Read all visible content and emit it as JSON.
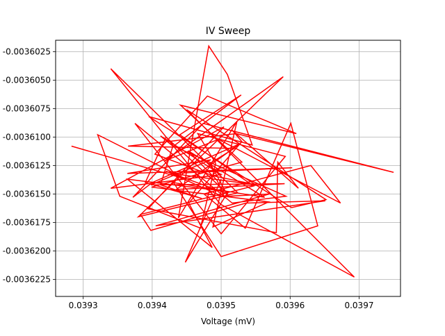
{
  "chart_data": {
    "type": "line",
    "title": "IV Sweep",
    "xlabel": "Voltage (mV)",
    "ylabel": "",
    "xlim": [
      0.03926,
      0.03976
    ],
    "ylim": [
      -0.003624,
      -0.0036015
    ],
    "x_ticks": [
      0.0393,
      0.0394,
      0.0395,
      0.0396,
      0.0397
    ],
    "x_tick_labels": [
      "0.0393",
      "0.0394",
      "0.0395",
      "0.0396",
      "0.0397"
    ],
    "y_ticks": [
      -0.0036025,
      -0.003605,
      -0.0036075,
      -0.00361,
      -0.0036125,
      -0.003615,
      -0.0036175,
      -0.00362,
      -0.0036225
    ],
    "y_tick_labels": [
      "-0.0036025",
      "-0.0036050",
      "-0.0036075",
      "-0.0036100",
      "-0.0036125",
      "-0.0036150",
      "-0.0036175",
      "-0.0036200",
      "-0.0036225"
    ],
    "grid": true,
    "line_color": "#ff0000",
    "x": [
      0.039283,
      0.039449,
      0.039321,
      0.039353,
      0.03947,
      0.039492,
      0.039466,
      0.039593,
      0.0395,
      0.039375,
      0.039516,
      0.039594,
      0.039431,
      0.039529,
      0.03944,
      0.039547,
      0.039383,
      0.039398,
      0.039536,
      0.039651,
      0.039405,
      0.03957,
      0.03951,
      0.039484,
      0.039519,
      0.039365,
      0.039522,
      0.03975,
      0.039474,
      0.039372,
      0.0394,
      0.039527,
      0.039435,
      0.039592,
      0.039398,
      0.039485,
      0.039364,
      0.039603,
      0.039428,
      0.039551,
      0.039488,
      0.039404,
      0.03948,
      0.039609,
      0.039441,
      0.03953,
      0.039399,
      0.039569,
      0.039488,
      0.039523,
      0.039438,
      0.039482,
      0.039509,
      0.039545,
      0.039395,
      0.039602,
      0.039652,
      0.03945,
      0.039693,
      0.039499,
      0.03934,
      0.039524,
      0.03938,
      0.03959,
      0.039418,
      0.039496,
      0.039673,
      0.03963,
      0.039475,
      0.039535,
      0.039601,
      0.03964,
      0.0395,
      0.039431,
      0.039563,
      0.039452,
      0.039494,
      0.039505,
      0.03942,
      0.03951,
      0.03942,
      0.03939,
      0.039472,
      0.039412,
      0.03943,
      0.039412,
      0.0395,
      0.03934,
      0.039504,
      0.039394,
      0.03958,
      0.039582,
      0.039612,
      0.039516,
      0.03953,
      0.039453,
      0.039487,
      0.039364,
      0.03951,
      0.039448,
      0.0395
    ],
    "y": [
      -0.0036108,
      -0.0036137,
      -0.0036098,
      -0.0036152,
      -0.003618,
      -0.0036123,
      -0.0036097,
      -0.0036117,
      -0.0036185,
      -0.0036088,
      -0.0036158,
      -0.0036152,
      -0.0036108,
      -0.0036063,
      -0.0036098,
      -0.0036143,
      -0.0036168,
      -0.0036182,
      -0.0036158,
      -0.0036156,
      -0.0036178,
      -0.003615,
      -0.0036152,
      -0.0036123,
      -0.003611,
      -0.0036108,
      -0.0036097,
      -0.0036131,
      -0.0036088,
      -0.0036153,
      -0.003614,
      -0.0036106,
      -0.0036146,
      -0.0036141,
      -0.0036142,
      -0.003612,
      -0.0036132,
      -0.0036127,
      -0.0036132,
      -0.0036142,
      -0.0036134,
      -0.0036115,
      -0.0036064,
      -0.0036097,
      -0.0036072,
      -0.0036122,
      -0.0036144,
      -0.0036157,
      -0.0036179,
      -0.0036086,
      -0.0036171,
      -0.003602,
      -0.0036045,
      -0.0036107,
      -0.0036082,
      -0.0036162,
      -0.0036155,
      -0.0036076,
      -0.0036223,
      -0.0036159,
      -0.003604,
      -0.0036149,
      -0.003617,
      -0.0036047,
      -0.0036121,
      -0.0036102,
      -0.0036158,
      -0.0036125,
      -0.003615,
      -0.003618,
      -0.0036088,
      -0.0036178,
      -0.0036205,
      -0.003614,
      -0.0036153,
      -0.0036112,
      -0.0036138,
      -0.0036153,
      -0.003613,
      -0.003615,
      -0.00361,
      -0.003614,
      -0.0036154,
      -0.0036142,
      -0.0036108,
      -0.0036099,
      -0.0036133,
      -0.0036145,
      -0.0036091,
      -0.0036163,
      -0.0036184,
      -0.0036122,
      -0.0036145,
      -0.0036094,
      -0.0036104,
      -0.0036158,
      -0.0036197,
      -0.0036137,
      -0.0036148,
      -0.003621,
      -0.0036137
    ]
  }
}
